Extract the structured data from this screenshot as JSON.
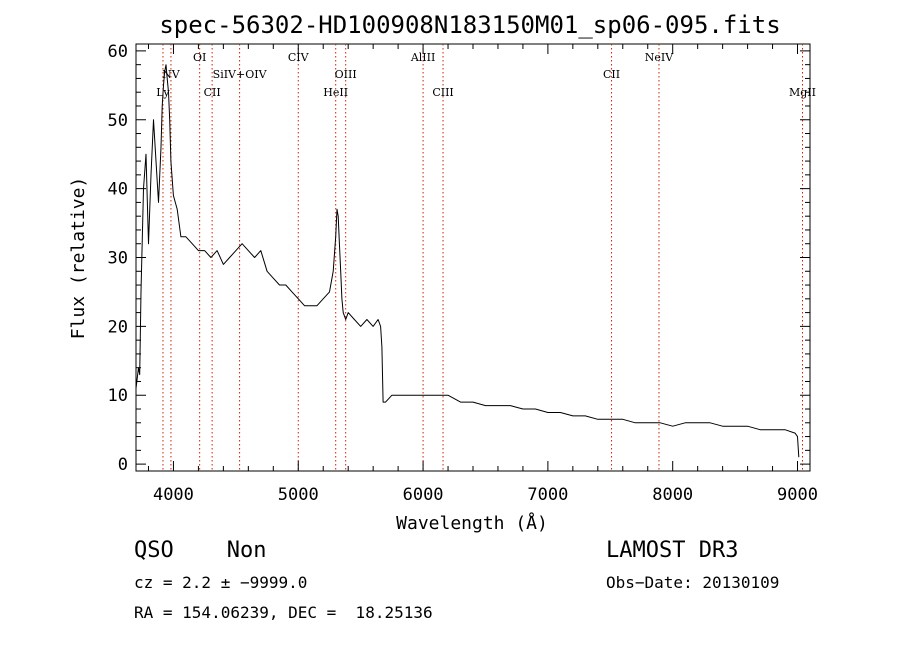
{
  "chart_data": {
    "type": "line",
    "title": "spec-56302-HD100908N183150M01_sp06-095.fits",
    "xlabel": "Wavelength (Å)",
    "ylabel": "Flux (relative)",
    "xlim": [
      3700,
      9100
    ],
    "ylim": [
      -1,
      61
    ],
    "xticks": [
      4000,
      5000,
      6000,
      7000,
      8000,
      9000
    ],
    "yticks": [
      0,
      10,
      20,
      30,
      40,
      50,
      60
    ],
    "grid": false,
    "series": [
      {
        "x": [
          3700,
          3720,
          3730,
          3740,
          3760,
          3780,
          3800,
          3820,
          3840,
          3860,
          3880,
          3900,
          3910,
          3920,
          3930,
          3940,
          3950,
          3960,
          3970,
          3980,
          4000,
          4030,
          4060,
          4100,
          4150,
          4200,
          4250,
          4300,
          4350,
          4400,
          4450,
          4500,
          4550,
          4600,
          4650,
          4700,
          4750,
          4800,
          4850,
          4900,
          4950,
          5000,
          5050,
          5100,
          5150,
          5200,
          5250,
          5280,
          5300,
          5310,
          5320,
          5330,
          5340,
          5350,
          5360,
          5380,
          5400,
          5450,
          5500,
          5550,
          5600,
          5640,
          5660,
          5670,
          5680,
          5700,
          5750,
          5800,
          5900,
          6000,
          6100,
          6200,
          6300,
          6400,
          6500,
          6600,
          6700,
          6800,
          6900,
          7000,
          7100,
          7200,
          7300,
          7400,
          7500,
          7600,
          7700,
          7800,
          7900,
          8000,
          8100,
          8200,
          8300,
          8400,
          8500,
          8600,
          8700,
          8800,
          8900,
          8980,
          9000,
          9010
        ],
        "values": [
          11,
          14,
          13,
          25,
          40,
          45,
          32,
          42,
          50,
          44,
          38,
          46,
          52,
          55,
          57,
          58,
          56,
          54,
          50,
          44,
          39,
          37,
          33,
          33,
          32,
          31,
          31,
          30,
          31,
          29,
          30,
          31,
          32,
          31,
          30,
          31,
          28,
          27,
          26,
          26,
          25,
          24,
          23,
          23,
          23,
          24,
          25,
          28,
          33,
          37,
          36,
          32,
          28,
          24,
          22,
          21,
          22,
          21,
          20,
          21,
          20,
          21,
          20,
          17,
          9,
          9,
          10,
          10,
          10,
          10,
          10,
          10,
          9,
          9,
          8.5,
          8.5,
          8.5,
          8,
          8,
          7.5,
          7.5,
          7,
          7,
          6.5,
          6.5,
          6.5,
          6,
          6,
          6,
          5.5,
          6,
          6,
          6,
          5.5,
          5.5,
          5.5,
          5,
          5,
          5,
          4.5,
          4,
          1
        ]
      }
    ],
    "lines": [
      {
        "label": "Ly",
        "x": 3916,
        "row": 3
      },
      {
        "label": "NV",
        "x": 3980,
        "row": 2
      },
      {
        "label": "OI",
        "x": 4210,
        "row": 1
      },
      {
        "label": "CII",
        "x": 4310,
        "row": 3
      },
      {
        "label": "SiIV+OIV",
        "x": 4530,
        "row": 2
      },
      {
        "label": "CIV",
        "x": 5000,
        "row": 1
      },
      {
        "label": "HeII",
        "x": 5300,
        "row": 3
      },
      {
        "label": "OIII",
        "x": 5380,
        "row": 2
      },
      {
        "label": "AlIII",
        "x": 6000,
        "row": 1
      },
      {
        "label": "CIII",
        "x": 6160,
        "row": 3
      },
      {
        "label": "CII",
        "x": 7510,
        "row": 2
      },
      {
        "label": "NeIV",
        "x": 7890,
        "row": 1
      },
      {
        "label": "MgII",
        "x": 9040,
        "row": 3
      }
    ]
  },
  "footer": {
    "classification": "QSO    Non",
    "survey": "LAMOST DR3",
    "cz": "cz = 2.2 ± −9999.0",
    "obs_date": "Obs−Date: 20130109",
    "coords": "RA = 154.06239, DEC =  18.25136"
  },
  "colors": {
    "line_marker": "#cc2200",
    "spectrum": "#000000"
  }
}
